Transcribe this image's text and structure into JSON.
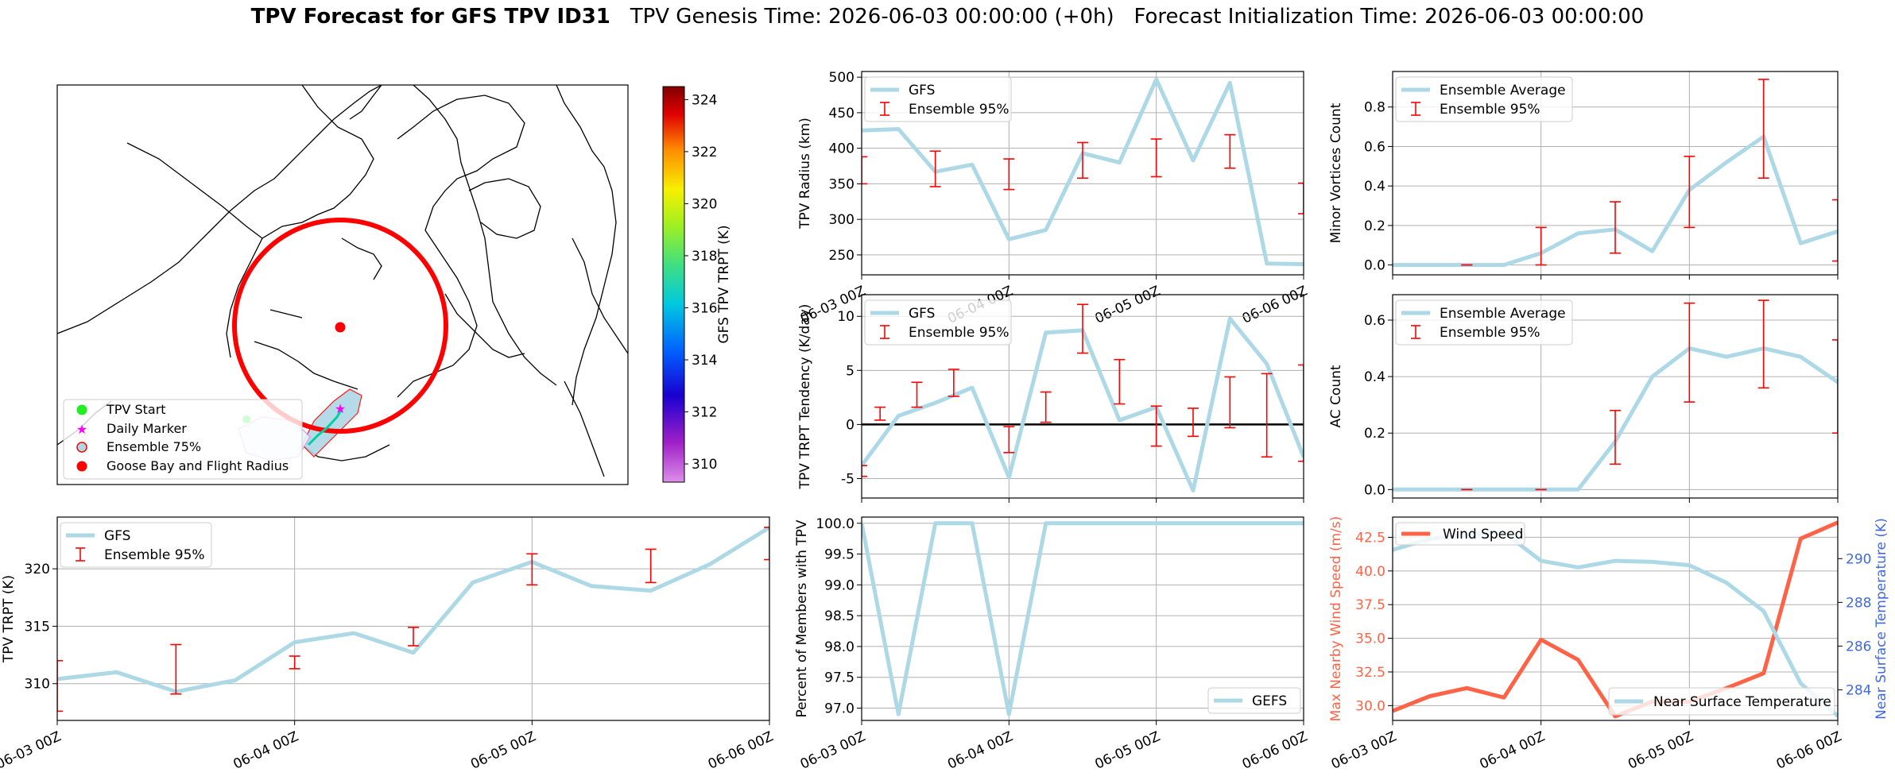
{
  "title": {
    "bold": "TPV Forecast for GFS TPV ID31",
    "genesis": "TPV Genesis Time: 2026-06-03 00:00:00 (+0h)",
    "init": "Forecast Initialization Time: 2026-06-03 00:00:00"
  },
  "colors": {
    "gfs_line": "#add8e6",
    "error_bar": "#ff0000",
    "wind": "#ff6347",
    "temp_axis": "#4169e1",
    "flight_radius": "#ff0000"
  },
  "map": {
    "legend": [
      "TPV Start",
      "Daily Marker",
      "Ensemble 75%",
      "Goose Bay and Flight Radius"
    ],
    "colorbar": {
      "label": "GFS TPV TRPT (K)",
      "ticks": [
        324,
        322,
        320,
        318,
        316,
        314,
        312,
        310
      ],
      "min": 309.3,
      "max": 324.5
    }
  },
  "chart_data": [
    {
      "type": "line",
      "id": "radius",
      "ylabel": "TPV Radius (km)",
      "ylim": [
        222,
        508
      ],
      "yticks": [
        250,
        300,
        350,
        400,
        450,
        500
      ],
      "xlim": [
        0,
        72
      ],
      "xticks": [
        0,
        24,
        48,
        72
      ],
      "xticklabels": [
        "06-03 00Z",
        "06-04 00Z",
        "06-05 00Z",
        "06-06 00Z"
      ],
      "grid": true,
      "legend": "upper left",
      "series": [
        {
          "name": "GFS",
          "x": [
            0,
            6,
            12,
            18,
            24,
            30,
            36,
            42,
            48,
            54,
            60,
            66,
            72
          ],
          "values": [
            425,
            427,
            367,
            377,
            272,
            285,
            393,
            380,
            497,
            383,
            492,
            238,
            237
          ]
        }
      ],
      "errorbars": {
        "name": "Ensemble 95%",
        "x": [
          0,
          12,
          24,
          36,
          48,
          60,
          72
        ],
        "low": [
          350,
          346,
          342,
          358,
          360,
          372,
          308
        ],
        "high": [
          388,
          396,
          385,
          408,
          413,
          419,
          351
        ]
      }
    },
    {
      "type": "line",
      "id": "minor",
      "ylabel": "Minor Vortices Count",
      "ylim": [
        -0.05,
        0.98
      ],
      "yticks": [
        0.0,
        0.2,
        0.4,
        0.6,
        0.8
      ],
      "xlim": [
        0,
        72
      ],
      "xticks": [
        0,
        24,
        48,
        72
      ],
      "grid": true,
      "legend": "upper left",
      "series": [
        {
          "name": "Ensemble Average",
          "x": [
            0,
            6,
            12,
            18,
            24,
            30,
            36,
            42,
            48,
            54,
            60,
            66,
            72
          ],
          "values": [
            0,
            0,
            0,
            0,
            0.06,
            0.16,
            0.18,
            0.07,
            0.38,
            0.52,
            0.65,
            0.11,
            0.17
          ]
        }
      ],
      "errorbars": {
        "name": "Ensemble 95%",
        "x": [
          12,
          24,
          36,
          48,
          60,
          72
        ],
        "low": [
          0,
          0,
          0.06,
          0.19,
          0.44,
          0.02
        ],
        "high": [
          0,
          0.19,
          0.32,
          0.55,
          0.94,
          0.33
        ]
      }
    },
    {
      "type": "line",
      "id": "tendency",
      "ylabel": "TPV TRPT Tendency (K/day)",
      "ylim": [
        -6.8,
        12
      ],
      "yticks": [
        -5,
        0,
        5,
        10
      ],
      "xlim": [
        0,
        72
      ],
      "xticks": [
        0,
        24,
        48,
        72
      ],
      "grid": true,
      "legend": "upper left",
      "zero_line": true,
      "series": [
        {
          "name": "GFS",
          "x": [
            0,
            6,
            12,
            18,
            24,
            30,
            36,
            42,
            48,
            54,
            60,
            66,
            72
          ],
          "values": [
            -3.8,
            0.8,
            2.0,
            3.4,
            -4.9,
            8.5,
            8.7,
            0.4,
            1.6,
            -6.1,
            9.8,
            5.6,
            -3.0
          ]
        }
      ],
      "errorbars": {
        "name": "Ensemble 95%",
        "x": [
          0,
          3,
          9,
          15,
          24,
          30,
          36,
          42,
          48,
          54,
          60,
          66,
          72
        ],
        "low": [
          -4.8,
          0.4,
          1.6,
          2.6,
          -2.6,
          0.2,
          6.6,
          1.9,
          -2.0,
          -1.1,
          -0.3,
          -3.0,
          -3.4
        ],
        "high": [
          -3.8,
          1.6,
          3.9,
          5.1,
          -0.2,
          3.0,
          11.1,
          6.0,
          1.7,
          1.5,
          4.4,
          4.7,
          5.5
        ]
      }
    },
    {
      "type": "line",
      "id": "ac",
      "ylabel": "AC Count",
      "ylim": [
        -0.03,
        0.69
      ],
      "yticks": [
        0.0,
        0.2,
        0.4,
        0.6
      ],
      "xlim": [
        0,
        72
      ],
      "xticks": [
        0,
        24,
        48,
        72
      ],
      "grid": true,
      "legend": "upper left",
      "series": [
        {
          "name": "Ensemble Average",
          "x": [
            0,
            6,
            12,
            18,
            24,
            30,
            36,
            42,
            48,
            54,
            60,
            66,
            72
          ],
          "values": [
            0,
            0,
            0,
            0,
            0,
            0,
            0.17,
            0.4,
            0.5,
            0.47,
            0.5,
            0.47,
            0.38
          ]
        }
      ],
      "errorbars": {
        "name": "Ensemble 95%",
        "x": [
          12,
          24,
          36,
          48,
          60,
          72
        ],
        "low": [
          0,
          0,
          0.09,
          0.31,
          0.36,
          0.2
        ],
        "high": [
          0,
          0,
          0.28,
          0.66,
          0.67,
          0.53
        ]
      }
    },
    {
      "type": "line",
      "id": "trpt",
      "ylabel": "TPV TRPT (K)",
      "ylim": [
        306.8,
        324.5
      ],
      "yticks": [
        310,
        315,
        320
      ],
      "xlim": [
        0,
        72
      ],
      "xticks": [
        0,
        24,
        48,
        72
      ],
      "xticklabels": [
        "06-03 00Z",
        "06-04 00Z",
        "06-05 00Z",
        "06-06 00Z"
      ],
      "grid": true,
      "legend": "upper left",
      "series": [
        {
          "name": "GFS",
          "x": [
            0,
            6,
            12,
            18,
            24,
            30,
            36,
            42,
            48,
            54,
            60,
            66,
            72
          ],
          "values": [
            310.4,
            311.0,
            309.3,
            310.3,
            313.6,
            314.4,
            312.7,
            318.8,
            320.6,
            318.5,
            318.1,
            320.4,
            323.6
          ]
        }
      ],
      "errorbars": {
        "name": "Ensemble 95%",
        "x": [
          0,
          12,
          24,
          36,
          48,
          60,
          72
        ],
        "low": [
          307.6,
          309.1,
          311.3,
          313.3,
          318.6,
          318.8,
          320.8
        ],
        "high": [
          312.0,
          313.4,
          312.4,
          314.9,
          321.3,
          321.7,
          323.6
        ]
      }
    },
    {
      "type": "line",
      "id": "members",
      "ylabel": "Percent of Members with TPV",
      "ylim": [
        96.8,
        100.1
      ],
      "yticks": [
        97.0,
        97.5,
        98.0,
        98.5,
        99.0,
        99.5,
        100.0
      ],
      "xlim": [
        0,
        72
      ],
      "xticks": [
        0,
        24,
        48,
        72
      ],
      "xticklabels": [
        "06-03 00Z",
        "06-04 00Z",
        "06-05 00Z",
        "06-06 00Z"
      ],
      "grid": true,
      "legend": "lower right",
      "series": [
        {
          "name": "GEFS",
          "x": [
            0,
            6,
            12,
            18,
            24,
            30,
            36,
            42,
            48,
            54,
            60,
            66,
            72
          ],
          "values": [
            100,
            96.9,
            100,
            100,
            96.9,
            100,
            100,
            100,
            100,
            100,
            100,
            100,
            100
          ]
        }
      ]
    },
    {
      "type": "line",
      "id": "wind_temp",
      "ylabel": "Max Nearby Wind Speed (m/s)",
      "ylim": [
        28.9,
        44.0
      ],
      "yticks": [
        30.0,
        32.5,
        35.0,
        37.5,
        40.0,
        42.5
      ],
      "y2label": "Near Surface Temperature (K)",
      "y2lim": [
        282.6,
        291.9
      ],
      "y2ticks": [
        284,
        286,
        288,
        290
      ],
      "xlim": [
        0,
        72
      ],
      "xticks": [
        0,
        24,
        48,
        72
      ],
      "xticklabels": [
        "06-03 00Z",
        "06-04 00Z",
        "06-05 00Z",
        "06-06 00Z"
      ],
      "grid": true,
      "series": [
        {
          "name": "Wind Speed",
          "axis": "left",
          "x": [
            0,
            6,
            12,
            18,
            24,
            30,
            36,
            42,
            48,
            54,
            60,
            66,
            72
          ],
          "values": [
            29.6,
            30.7,
            31.3,
            30.6,
            34.9,
            33.4,
            29.2,
            30.3,
            30.3,
            31.3,
            32.4,
            42.4,
            43.6
          ]
        },
        {
          "name": "Near Surface Temperature",
          "axis": "right",
          "x": [
            0,
            6,
            12,
            18,
            24,
            30,
            36,
            42,
            48,
            54,
            60,
            66,
            72
          ],
          "values": [
            290.4,
            290.9,
            291.1,
            291.2,
            289.9,
            289.6,
            289.9,
            289.85,
            289.7,
            288.9,
            287.6,
            284.3,
            282.8
          ]
        }
      ]
    }
  ]
}
